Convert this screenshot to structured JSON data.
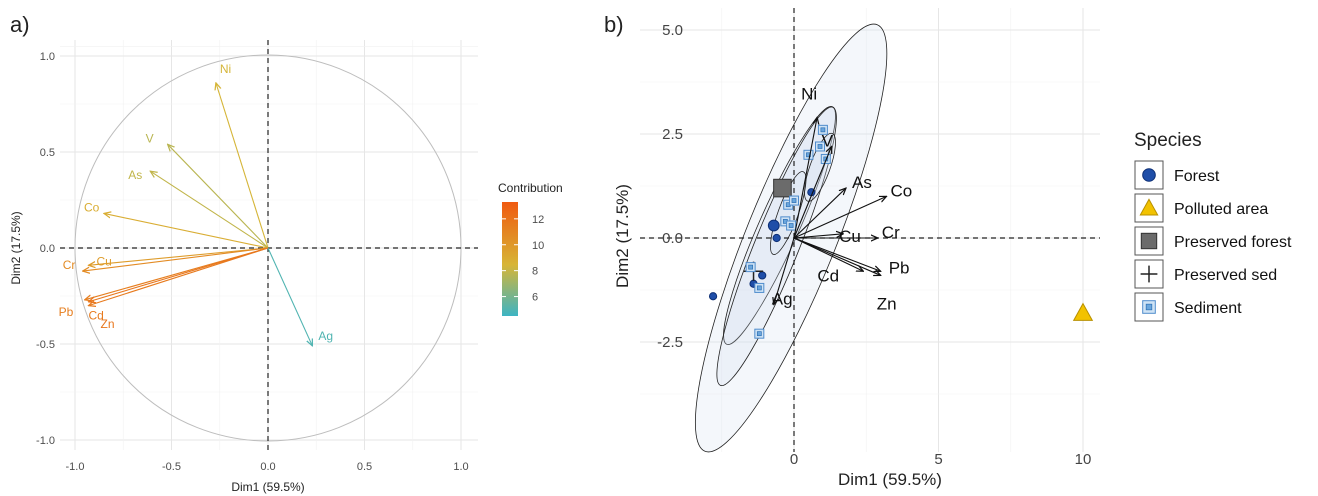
{
  "chart_data": [
    {
      "type": "scatter",
      "panel_label": "a)",
      "title": "",
      "xlabel": "Dim1 (59.5%)",
      "ylabel": "Dim2 (17.5%)",
      "xlim": [
        -1.05,
        1.05
      ],
      "ylim": [
        -1.05,
        1.1
      ],
      "x_ticks": [
        "-1.0",
        "-0.5",
        "0.0",
        "0.5",
        "1.0"
      ],
      "y_ticks": [
        "-1.0",
        "-0.5",
        "0.0",
        "0.5",
        "1.0"
      ],
      "grid": true,
      "unit_circle": true,
      "legend_title": "Contribution",
      "colorbar_ticks": [
        "6",
        "8",
        "10",
        "12"
      ],
      "colorbar_range": [
        4.5,
        13.3
      ],
      "variables": [
        {
          "name": "Ni",
          "x": -0.27,
          "y": 0.86,
          "contribution": 8.4
        },
        {
          "name": "V",
          "x": -0.52,
          "y": 0.54,
          "contribution": 7.7
        },
        {
          "name": "As",
          "x": -0.61,
          "y": 0.4,
          "contribution": 7.9
        },
        {
          "name": "Co",
          "x": -0.85,
          "y": 0.18,
          "contribution": 8.9
        },
        {
          "name": "Cu",
          "x": -0.93,
          "y": -0.09,
          "contribution": 9.8
        },
        {
          "name": "Cr",
          "x": -0.96,
          "y": -0.12,
          "contribution": 10.7
        },
        {
          "name": "Pb",
          "x": -0.95,
          "y": -0.27,
          "contribution": 11.4
        },
        {
          "name": "Cd",
          "x": -0.93,
          "y": -0.3,
          "contribution": 11.6
        },
        {
          "name": "Zn",
          "x": -0.93,
          "y": -0.28,
          "contribution": 11.8
        },
        {
          "name": "Ag",
          "x": 0.23,
          "y": -0.51,
          "contribution": 5.0
        }
      ],
      "colors": {
        "low": "#3cb4c3",
        "mid": "#d7b536",
        "high": "#f05a10"
      }
    },
    {
      "type": "scatter",
      "panel_label": "b)",
      "title": "",
      "xlabel": "Dim1 (59.5%)",
      "ylabel": "Dim2 (17.5%)",
      "xlim": [
        -3.4,
        10.8
      ],
      "ylim": [
        -4.5,
        5.3
      ],
      "x_ticks": [
        "0",
        "5",
        "10"
      ],
      "y_ticks": [
        "5.0",
        "2.5",
        "0.0",
        "-2.5"
      ],
      "grid": true,
      "legend_title": "Species",
      "legend": [
        {
          "label": "Forest",
          "marker": "circle",
          "color": "#1f5fbf"
        },
        {
          "label": "Polluted area",
          "marker": "triangle",
          "color": "#f2c200"
        },
        {
          "label": "Preserved forest",
          "marker": "square",
          "color": "#6b6b6b"
        },
        {
          "label": "Preserved sed",
          "marker": "plus",
          "color": "#222222"
        },
        {
          "label": "Sediment",
          "marker": "square-box",
          "color": "#6aa6dd"
        }
      ],
      "points": [
        {
          "group": "Forest",
          "x": -2.8,
          "y": -1.4
        },
        {
          "group": "Forest",
          "x": -1.1,
          "y": -0.9
        },
        {
          "group": "Forest",
          "x": -0.7,
          "y": 0.3
        },
        {
          "group": "Forest",
          "x": -0.6,
          "y": 0.0
        },
        {
          "group": "Forest",
          "x": -0.4,
          "y": 1.1
        },
        {
          "group": "Forest",
          "x": 0.6,
          "y": 1.1
        },
        {
          "group": "Forest",
          "x": -1.4,
          "y": -1.1
        },
        {
          "group": "Polluted area",
          "x": 10.0,
          "y": -1.8
        },
        {
          "group": "Preserved forest",
          "x": -0.4,
          "y": 1.2
        },
        {
          "group": "Preserved sed",
          "x": -1.4,
          "y": -0.8
        },
        {
          "group": "Sediment",
          "x": -1.5,
          "y": -0.7
        },
        {
          "group": "Sediment",
          "x": -1.2,
          "y": -1.2
        },
        {
          "group": "Sediment",
          "x": -0.2,
          "y": 0.8
        },
        {
          "group": "Sediment",
          "x": -0.3,
          "y": 0.4
        },
        {
          "group": "Sediment",
          "x": 0.0,
          "y": 0.9
        },
        {
          "group": "Sediment",
          "x": 0.5,
          "y": 2.0
        },
        {
          "group": "Sediment",
          "x": 0.9,
          "y": 2.2
        },
        {
          "group": "Sediment",
          "x": 1.0,
          "y": 2.6
        },
        {
          "group": "Sediment",
          "x": 1.1,
          "y": 1.9
        },
        {
          "group": "Sediment",
          "x": -0.1,
          "y": 0.3
        },
        {
          "group": "Sediment",
          "x": -1.2,
          "y": -2.3
        }
      ],
      "variables": [
        {
          "name": "Ni",
          "x": 0.8,
          "y": 2.9
        },
        {
          "name": "V",
          "x": 1.3,
          "y": 2.2
        },
        {
          "name": "As",
          "x": 1.8,
          "y": 1.2
        },
        {
          "name": "Co",
          "x": 3.2,
          "y": 1.0
        },
        {
          "name": "Cu",
          "x": 1.7,
          "y": 0.1
        },
        {
          "name": "Cr",
          "x": 2.9,
          "y": 0.0
        },
        {
          "name": "Cd",
          "x": 2.4,
          "y": -0.8
        },
        {
          "name": "Pb",
          "x": 3.0,
          "y": -0.8
        },
        {
          "name": "Zn",
          "x": 3.0,
          "y": -0.9
        },
        {
          "name": "Ag",
          "x": -0.7,
          "y": -1.6
        }
      ]
    }
  ]
}
